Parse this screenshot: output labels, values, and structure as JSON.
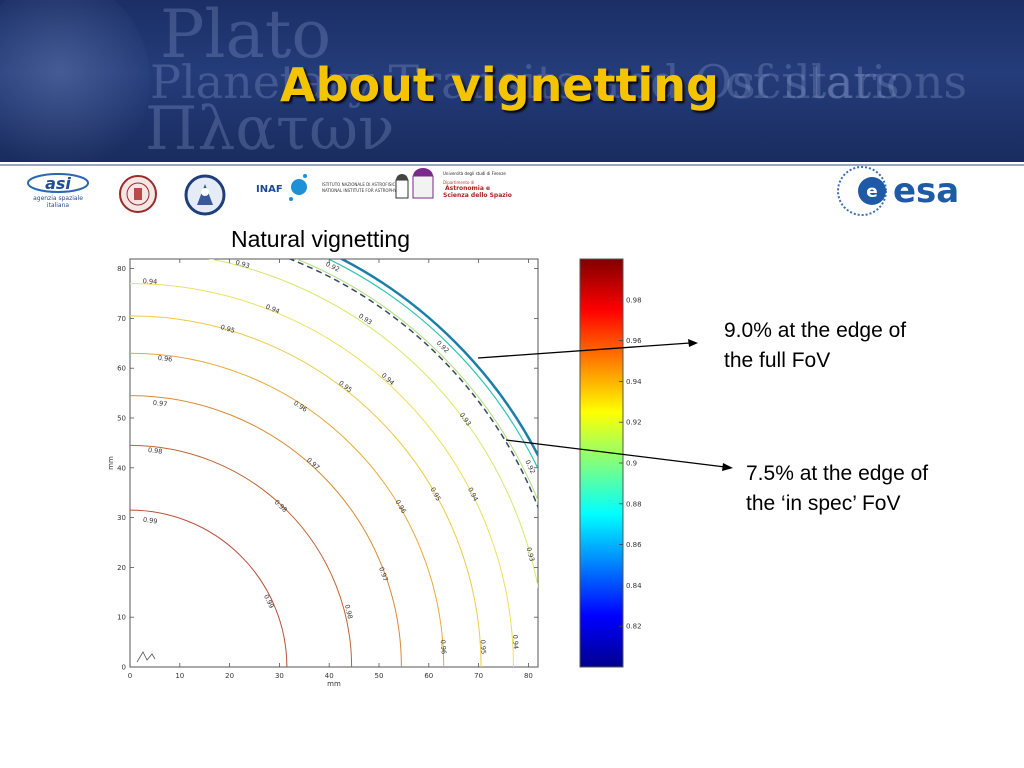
{
  "slide": {
    "title": "About vignetting",
    "banner_text": {
      "line1": "Plato",
      "line2a": "Planetary Transits and Oscillations",
      "line2b": "of stars",
      "line3": "Πλατων"
    }
  },
  "logos": {
    "asi_name": "asi",
    "asi_sub1": "agenzia spaziale",
    "asi_sub2": "italiana",
    "inaf": "INAF",
    "inaf_sub1": "ISTITUTO NAZIONALE DI ASTROFISICA",
    "inaf_sub2": "NATIONAL INSTITUTE FOR ASTROPHYSICS",
    "firenze_top": "Università degli studi di Firenze",
    "firenze_dept": "Dipartimento di",
    "firenze_line1": "Astronomia e",
    "firenze_line2": "Scienza dello Spazio",
    "esa": "esa"
  },
  "callouts": {
    "full_fov": {
      "line1": "9.0% at the edge of",
      "line2": "the full FoV"
    },
    "spec_fov": {
      "line1": "7.5% at the edge of",
      "line2": "the ‘in spec’ FoV"
    }
  },
  "chart_data": {
    "type": "contour",
    "title": "Natural vignetting",
    "xlabel": "mm",
    "ylabel": "mm",
    "xlim": [
      0,
      82
    ],
    "ylim": [
      0,
      81
    ],
    "xticks": [
      0,
      10,
      20,
      30,
      40,
      50,
      60,
      70,
      80
    ],
    "yticks": [
      0,
      10,
      20,
      30,
      40,
      50,
      60,
      70,
      80
    ],
    "contours": [
      {
        "level": 0.99,
        "radius_mm": 31.5,
        "color": "#b5513a"
      },
      {
        "level": 0.98,
        "radius_mm": 44.5,
        "color": "#c0622f"
      },
      {
        "level": 0.97,
        "radius_mm": 54.5,
        "color": "#d88a34"
      },
      {
        "level": 0.96,
        "radius_mm": 63.0,
        "color": "#e7a93a"
      },
      {
        "level": 0.95,
        "radius_mm": 70.5,
        "color": "#eeca45"
      },
      {
        "level": 0.94,
        "radius_mm": 77.0,
        "color": "#efe05a"
      },
      {
        "level": 0.93,
        "radius_mm": 83.5,
        "color": "#d6e86a"
      },
      {
        "level": 0.92,
        "radius_mm": 88.5,
        "color": "#a9e07a"
      }
    ],
    "contour_labels": [
      {
        "text": "0.99",
        "x": 4.0,
        "y": 29.0
      },
      {
        "text": "0.99",
        "x": 27.5,
        "y": 13.0
      },
      {
        "text": "0.98",
        "x": 5.0,
        "y": 43.0
      },
      {
        "text": "0.98",
        "x": 30.0,
        "y": 32.0
      },
      {
        "text": "0.98",
        "x": 43.5,
        "y": 11.0
      },
      {
        "text": "0.97",
        "x": 6.0,
        "y": 52.5
      },
      {
        "text": "0.97",
        "x": 36.5,
        "y": 40.5
      },
      {
        "text": "0.97",
        "x": 50.5,
        "y": 18.5
      },
      {
        "text": "0.96",
        "x": 7.0,
        "y": 61.5
      },
      {
        "text": "0.96",
        "x": 34.0,
        "y": 52.0
      },
      {
        "text": "0.96",
        "x": 54.0,
        "y": 32.0
      },
      {
        "text": "0.96",
        "x": 62.5,
        "y": 4.0
      },
      {
        "text": "0.95",
        "x": 19.5,
        "y": 67.5
      },
      {
        "text": "0.95",
        "x": 43.0,
        "y": 56.0
      },
      {
        "text": "0.95",
        "x": 61.0,
        "y": 34.5
      },
      {
        "text": "0.95",
        "x": 70.5,
        "y": 4.0
      },
      {
        "text": "0.94",
        "x": 4.0,
        "y": 77.0
      },
      {
        "text": "0.94",
        "x": 28.5,
        "y": 71.5
      },
      {
        "text": "0.94",
        "x": 51.5,
        "y": 57.5
      },
      {
        "text": "0.94",
        "x": 68.5,
        "y": 34.5
      },
      {
        "text": "0.94",
        "x": 77.0,
        "y": 5.0
      },
      {
        "text": "0.93",
        "x": 22.5,
        "y": 80.5
      },
      {
        "text": "0.93",
        "x": 47.0,
        "y": 69.5
      },
      {
        "text": "0.93",
        "x": 67.0,
        "y": 49.5
      },
      {
        "text": "0.93",
        "x": 80.0,
        "y": 22.5
      },
      {
        "text": "0.92",
        "x": 40.5,
        "y": 80.0
      },
      {
        "text": "0.92",
        "x": 62.5,
        "y": 64.0
      },
      {
        "text": "0.92",
        "x": 80.0,
        "y": 40.0
      }
    ],
    "boundaries": [
      {
        "name": "in spec FoV",
        "radius_mm": 88.0,
        "style": "dashed"
      },
      {
        "name": "full FoV",
        "radius_mm": 92.3,
        "style": "solid"
      }
    ],
    "colorbar": {
      "range": [
        0.8,
        1.0
      ],
      "ticks": [
        0.82,
        0.84,
        0.86,
        0.88,
        0.9,
        0.92,
        0.94,
        0.96,
        0.98
      ],
      "tick_labels": [
        "0.82",
        "0.84",
        "0.86",
        "0.88",
        "0.9",
        "0.92",
        "0.94",
        "0.96",
        "0.98"
      ]
    }
  }
}
